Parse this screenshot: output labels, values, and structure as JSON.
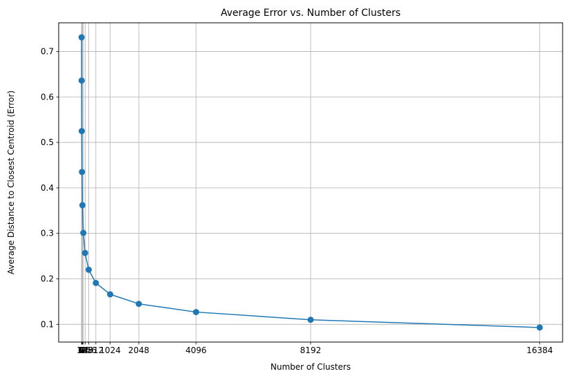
{
  "chart_data": {
    "type": "line",
    "title": "Average Error vs. Number of Clusters",
    "xlabel": "Number of Clusters",
    "ylabel": "Average Distance to Closest Centroid (Error)",
    "x": [
      2,
      4,
      8,
      16,
      32,
      64,
      128,
      256,
      512,
      1024,
      2048,
      4096,
      8192,
      16384
    ],
    "series": [
      {
        "values": [
          0.731,
          0.636,
          0.525,
          0.435,
          0.362,
          0.301,
          0.257,
          0.22,
          0.191,
          0.166,
          0.145,
          0.127,
          0.11,
          0.093
        ]
      }
    ],
    "xticks": [
      2,
      4,
      8,
      16,
      32,
      64,
      128,
      256,
      512,
      1024,
      2048,
      4096,
      8192,
      16384
    ],
    "xtick_labels": [
      "2",
      "4",
      "8",
      "16",
      "32",
      "64",
      "128",
      "256",
      "512",
      "1024",
      "2048",
      "4096",
      "8192",
      "16384"
    ],
    "yticks": [
      0.1,
      0.2,
      0.3,
      0.4,
      0.5,
      0.6,
      0.7
    ],
    "ytick_labels": [
      "0.1",
      "0.2",
      "0.3",
      "0.4",
      "0.5",
      "0.6",
      "0.7"
    ],
    "xlim": [
      -817,
      17203
    ],
    "ylim": [
      0.061,
      0.763
    ],
    "grid": true,
    "colors": {
      "line": "#1f77b4",
      "grid": "#b0b0b0",
      "axes": "#000000"
    },
    "marker": "circle"
  }
}
